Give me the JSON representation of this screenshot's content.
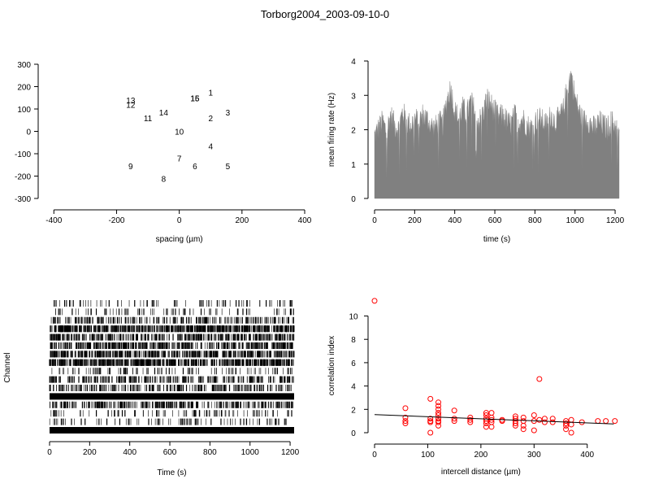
{
  "page_title": "Torborg2004_2003-09-10-0",
  "chart_data": [
    {
      "id": "positions",
      "type": "scatter",
      "title": "",
      "xlabel": "spacing (µm)",
      "ylabel": "",
      "xlim": [
        -450,
        400
      ],
      "ylim": [
        -300,
        300
      ],
      "x_ticks": [
        -400,
        -200,
        0,
        200,
        400
      ],
      "y_ticks": [
        -300,
        -200,
        -100,
        0,
        100,
        200,
        300
      ],
      "grid": false,
      "points": [
        {
          "label": "1",
          "x": 100,
          "y": 175
        },
        {
          "label": "2",
          "x": 100,
          "y": 60
        },
        {
          "label": "3",
          "x": 155,
          "y": 85
        },
        {
          "label": "4",
          "x": 100,
          "y": -65
        },
        {
          "label": "5",
          "x": 155,
          "y": -155
        },
        {
          "label": "6",
          "x": 50,
          "y": -155
        },
        {
          "label": "7",
          "x": 0,
          "y": -120
        },
        {
          "label": "8",
          "x": -50,
          "y": -210
        },
        {
          "label": "9",
          "x": -155,
          "y": -155
        },
        {
          "label": "10",
          "x": 0,
          "y": 0
        },
        {
          "label": "11",
          "x": -100,
          "y": 60
        },
        {
          "label": "12",
          "x": -155,
          "y": 120
        },
        {
          "label": "13",
          "x": -155,
          "y": 140
        },
        {
          "label": "14",
          "x": -50,
          "y": 85
        },
        {
          "label": "15",
          "x": 50,
          "y": 150
        },
        {
          "label": "16",
          "x": 50,
          "y": 150
        }
      ]
    },
    {
      "id": "firing-rate",
      "type": "area",
      "title": "",
      "xlabel": "time (s)",
      "ylabel": "mean firing rate (Hz)",
      "xlim": [
        0,
        1220
      ],
      "ylim": [
        0,
        4
      ],
      "x_ticks": [
        0,
        200,
        400,
        600,
        800,
        1000,
        1200
      ],
      "y_ticks": [
        0,
        1,
        2,
        3,
        4
      ],
      "grid": false,
      "color": "#808080",
      "x": [
        0,
        20,
        40,
        60,
        80,
        100,
        120,
        140,
        160,
        180,
        200,
        220,
        240,
        260,
        280,
        300,
        320,
        340,
        360,
        380,
        400,
        420,
        440,
        460,
        480,
        500,
        520,
        540,
        560,
        580,
        600,
        620,
        640,
        660,
        680,
        700,
        720,
        740,
        760,
        780,
        800,
        820,
        840,
        860,
        880,
        900,
        920,
        940,
        960,
        980,
        1000,
        1020,
        1040,
        1060,
        1080,
        1100,
        1120,
        1140,
        1160,
        1180,
        1200,
        1220
      ],
      "y": [
        1.9,
        2.1,
        2.3,
        2.0,
        2.5,
        2.2,
        2.1,
        2.6,
        2.3,
        2.2,
        2.4,
        2.3,
        2.5,
        2.4,
        2.2,
        2.1,
        2.3,
        2.2,
        2.9,
        3.3,
        2.6,
        2.4,
        2.7,
        2.5,
        2.9,
        2.6,
        2.3,
        2.5,
        3.0,
        2.8,
        2.6,
        2.4,
        2.5,
        2.3,
        2.2,
        2.5,
        2.3,
        2.4,
        2.2,
        2.1,
        2.3,
        2.4,
        2.3,
        2.2,
        2.5,
        2.3,
        2.4,
        2.6,
        3.2,
        3.7,
        3.0,
        2.6,
        2.3,
        2.4,
        2.2,
        2.1,
        2.3,
        2.2,
        2.1,
        2.3,
        2.2,
        2.0
      ]
    },
    {
      "id": "raster",
      "type": "scatter",
      "title": "",
      "xlabel": "Time (s)",
      "ylabel": "Channel",
      "xlim": [
        0,
        1220
      ],
      "x_ticks": [
        0,
        200,
        400,
        600,
        800,
        1000,
        1200
      ],
      "grid": false,
      "channel_count": 16,
      "channel_density": [
        0.08,
        0.08,
        0.35,
        0.95,
        0.6,
        0.7,
        0.8,
        0.95,
        0.12,
        0.45,
        0.4,
        1.0,
        0.5,
        0.1,
        0.1,
        1.0
      ]
    },
    {
      "id": "correlation",
      "type": "scatter",
      "title": "",
      "xlabel": "intercell distance (µm)",
      "ylabel": "correlation index",
      "xlim": [
        0,
        460
      ],
      "ylim": [
        0,
        11.5
      ],
      "x_ticks": [
        0,
        100,
        200,
        300,
        400
      ],
      "y_ticks": [
        0,
        2,
        4,
        6,
        8,
        10
      ],
      "grid": false,
      "color": "#ff0000",
      "trend_line": {
        "x": [
          0,
          450
        ],
        "y": [
          1.55,
          0.75
        ]
      },
      "points": [
        [
          0,
          11.3
        ],
        [
          58,
          2.1
        ],
        [
          58,
          1.3
        ],
        [
          58,
          1.0
        ],
        [
          58,
          0.8
        ],
        [
          105,
          2.9
        ],
        [
          105,
          1.2
        ],
        [
          105,
          1.0
        ],
        [
          105,
          0.9
        ],
        [
          105,
          0.0
        ],
        [
          120,
          2.6
        ],
        [
          120,
          2.3
        ],
        [
          120,
          2.0
        ],
        [
          120,
          1.7
        ],
        [
          120,
          1.5
        ],
        [
          120,
          1.2
        ],
        [
          120,
          1.0
        ],
        [
          120,
          0.9
        ],
        [
          120,
          0.6
        ],
        [
          150,
          1.9
        ],
        [
          150,
          1.2
        ],
        [
          150,
          1.0
        ],
        [
          180,
          1.3
        ],
        [
          180,
          1.1
        ],
        [
          180,
          0.9
        ],
        [
          210,
          1.7
        ],
        [
          210,
          1.5
        ],
        [
          210,
          1.2
        ],
        [
          210,
          1.0
        ],
        [
          210,
          0.8
        ],
        [
          210,
          0.5
        ],
        [
          220,
          1.7
        ],
        [
          220,
          1.3
        ],
        [
          220,
          1.1
        ],
        [
          220,
          0.9
        ],
        [
          220,
          0.5
        ],
        [
          240,
          1.1
        ],
        [
          240,
          1.0
        ],
        [
          265,
          1.4
        ],
        [
          265,
          1.2
        ],
        [
          265,
          1.0
        ],
        [
          265,
          0.8
        ],
        [
          265,
          0.6
        ],
        [
          280,
          1.3
        ],
        [
          280,
          1.0
        ],
        [
          280,
          0.6
        ],
        [
          280,
          0.3
        ],
        [
          300,
          1.5
        ],
        [
          300,
          1.0
        ],
        [
          300,
          0.2
        ],
        [
          310,
          4.6
        ],
        [
          310,
          1.1
        ],
        [
          320,
          1.2
        ],
        [
          320,
          0.9
        ],
        [
          335,
          1.2
        ],
        [
          335,
          0.9
        ],
        [
          360,
          1.0
        ],
        [
          360,
          0.8
        ],
        [
          360,
          0.6
        ],
        [
          360,
          0.3
        ],
        [
          370,
          1.1
        ],
        [
          370,
          0.7
        ],
        [
          370,
          0.0
        ],
        [
          390,
          0.9
        ],
        [
          420,
          1.0
        ],
        [
          435,
          1.0
        ],
        [
          452,
          1.0
        ]
      ]
    }
  ]
}
